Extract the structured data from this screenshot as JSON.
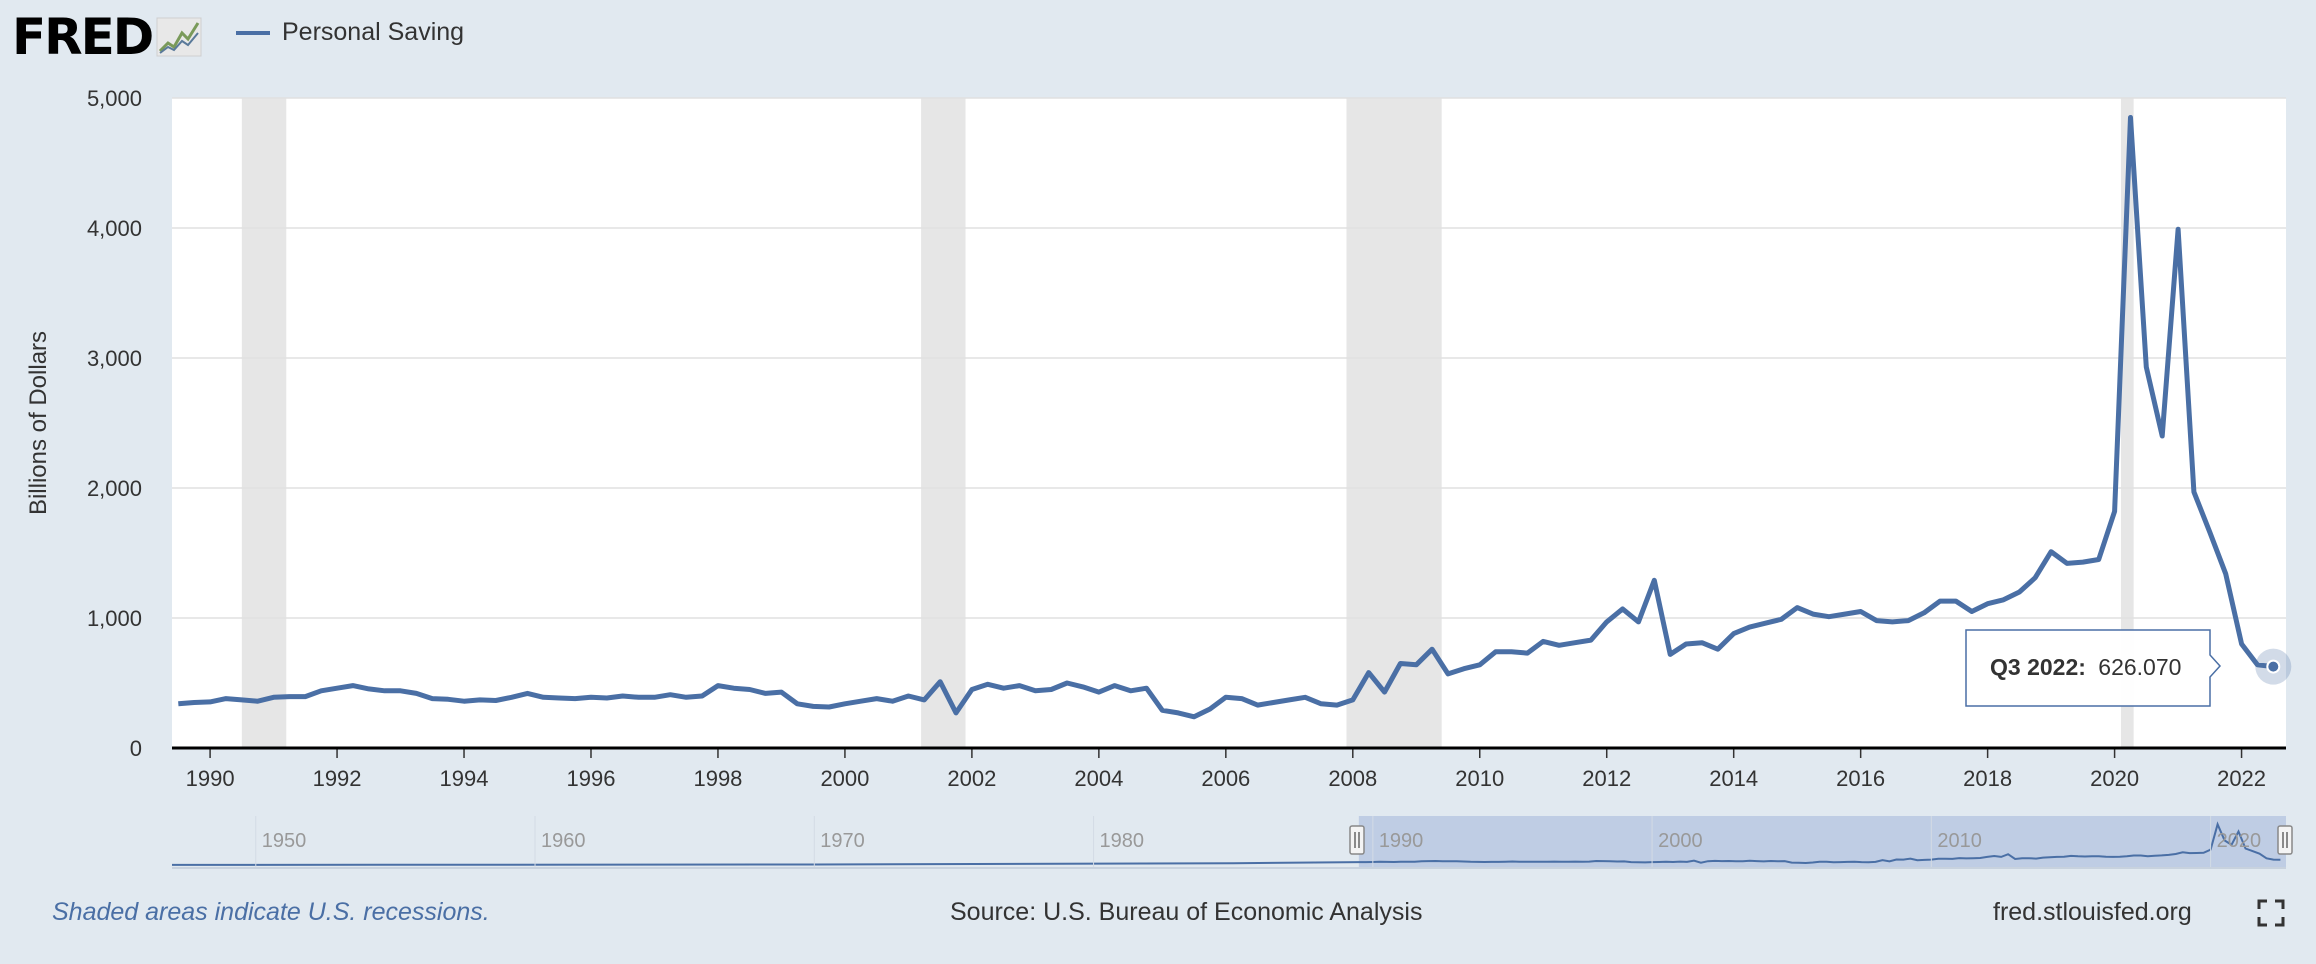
{
  "header": {
    "logo_text": "FRED",
    "legend_label": "Personal Saving",
    "series_color": "#4a6fa5"
  },
  "chart_data": {
    "type": "line",
    "ylabel": "Billions of Dollars",
    "xlabel": "",
    "ylim": [
      0,
      5000
    ],
    "xlim": [
      1989.4,
      2022.7
    ],
    "yticks": [
      0,
      1000,
      2000,
      3000,
      4000,
      5000
    ],
    "yticklabels": [
      "0",
      "1,000",
      "2,000",
      "3,000",
      "4,000",
      "5,000"
    ],
    "xticks": [
      1990,
      1992,
      1994,
      1996,
      1998,
      2000,
      2002,
      2004,
      2006,
      2008,
      2010,
      2012,
      2014,
      2016,
      2018,
      2020,
      2022
    ],
    "xticklabels": [
      "1990",
      "1992",
      "1994",
      "1996",
      "1998",
      "2000",
      "2002",
      "2004",
      "2006",
      "2008",
      "2010",
      "2012",
      "2014",
      "2016",
      "2018",
      "2020",
      "2022"
    ],
    "grid": true,
    "recessions": [
      [
        1990.5,
        1991.2
      ],
      [
        2001.2,
        2001.9
      ],
      [
        2007.9,
        2009.4
      ],
      [
        2020.1,
        2020.3
      ]
    ],
    "series": [
      {
        "name": "Personal Saving",
        "x": [
          1989.5,
          1989.75,
          1990.0,
          1990.25,
          1990.5,
          1990.75,
          1991.0,
          1991.25,
          1991.5,
          1991.75,
          1992.0,
          1992.25,
          1992.5,
          1992.75,
          1993.0,
          1993.25,
          1993.5,
          1993.75,
          1994.0,
          1994.25,
          1994.5,
          1994.75,
          1995.0,
          1995.25,
          1995.5,
          1995.75,
          1996.0,
          1996.25,
          1996.5,
          1996.75,
          1997.0,
          1997.25,
          1997.5,
          1997.75,
          1998.0,
          1998.25,
          1998.5,
          1998.75,
          1999.0,
          1999.25,
          1999.5,
          1999.75,
          2000.0,
          2000.25,
          2000.5,
          2000.75,
          2001.0,
          2001.25,
          2001.5,
          2001.75,
          2002.0,
          2002.25,
          2002.5,
          2002.75,
          2003.0,
          2003.25,
          2003.5,
          2003.75,
          2004.0,
          2004.25,
          2004.5,
          2004.75,
          2005.0,
          2005.25,
          2005.5,
          2005.75,
          2006.0,
          2006.25,
          2006.5,
          2006.75,
          2007.0,
          2007.25,
          2007.5,
          2007.75,
          2008.0,
          2008.25,
          2008.5,
          2008.75,
          2009.0,
          2009.25,
          2009.5,
          2009.75,
          2010.0,
          2010.25,
          2010.5,
          2010.75,
          2011.0,
          2011.25,
          2011.5,
          2011.75,
          2012.0,
          2012.25,
          2012.5,
          2012.75,
          2013.0,
          2013.25,
          2013.5,
          2013.75,
          2014.0,
          2014.25,
          2014.5,
          2014.75,
          2015.0,
          2015.25,
          2015.5,
          2015.75,
          2016.0,
          2016.25,
          2016.5,
          2016.75,
          2017.0,
          2017.25,
          2017.5,
          2017.75,
          2018.0,
          2018.25,
          2018.5,
          2018.75,
          2019.0,
          2019.25,
          2019.5,
          2019.75,
          2020.0,
          2020.25,
          2020.5,
          2020.75,
          2021.0,
          2021.25,
          2021.5,
          2021.75,
          2022.0,
          2022.25,
          2022.5
        ],
        "values": [
          340,
          350,
          355,
          380,
          370,
          360,
          390,
          395,
          395,
          440,
          460,
          480,
          455,
          440,
          440,
          420,
          380,
          375,
          360,
          370,
          365,
          390,
          420,
          390,
          385,
          380,
          390,
          385,
          400,
          390,
          390,
          410,
          390,
          400,
          480,
          460,
          450,
          420,
          430,
          340,
          320,
          315,
          340,
          360,
          380,
          360,
          400,
          370,
          510,
          270,
          450,
          490,
          460,
          480,
          440,
          450,
          500,
          470,
          430,
          480,
          440,
          460,
          290,
          270,
          240,
          300,
          390,
          380,
          330,
          350,
          370,
          390,
          340,
          330,
          370,
          580,
          430,
          650,
          640,
          760,
          570,
          610,
          640,
          740,
          740,
          730,
          820,
          790,
          810,
          830,
          970,
          1070,
          970,
          1290,
          720,
          800,
          810,
          760,
          880,
          930,
          960,
          990,
          1080,
          1030,
          1010,
          1030,
          1050,
          980,
          970,
          980,
          1040,
          1130,
          1130,
          1050,
          1110,
          1140,
          1200,
          1310,
          1510,
          1420,
          1430,
          1450,
          1820,
          4850,
          2930,
          2400,
          3990,
          1970,
          1660,
          1340,
          800,
          640,
          626.07
        ]
      }
    ],
    "tooltip": {
      "label": "Q3 2022:",
      "value": "626.070"
    },
    "navigator": {
      "ticklabels": [
        "1950",
        "1960",
        "1970",
        "1980",
        "1990",
        "2000",
        "2010",
        "2020"
      ]
    }
  },
  "footer": {
    "note": "Shaded areas indicate U.S. recessions.",
    "source": "Source: U.S. Bureau of Economic Analysis",
    "link": "fred.stlouisfed.org"
  }
}
